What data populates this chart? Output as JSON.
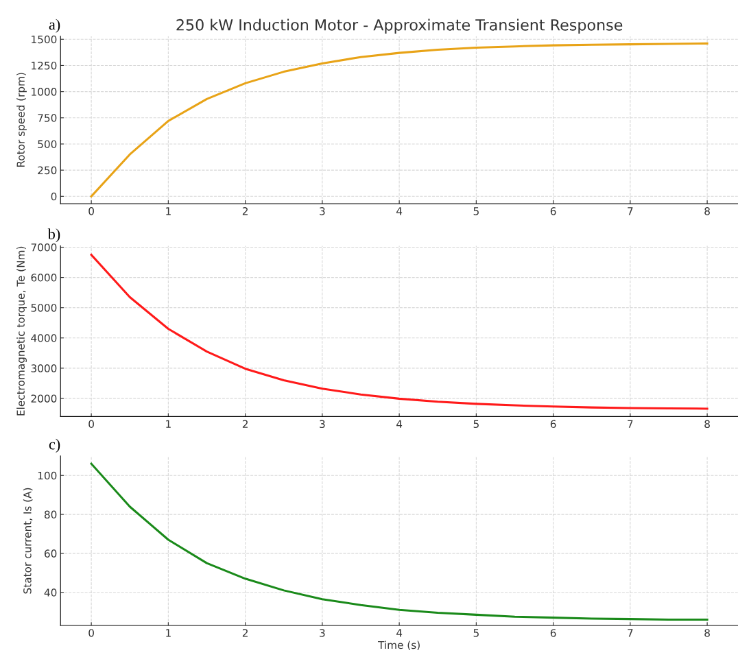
{
  "chart_data": [
    {
      "type": "line",
      "title": "250 kW Induction Motor - Approximate Transient Response",
      "ylabel": "Rotor speed (rpm)",
      "annotations": [
        "a)"
      ],
      "x": [
        0,
        0.5,
        1,
        1.5,
        2,
        2.5,
        3,
        3.5,
        4,
        4.5,
        5,
        5.5,
        6,
        6.5,
        7,
        7.5,
        8
      ],
      "series": [
        {
          "color": "#e8a317",
          "values": [
            0,
            400,
            720,
            930,
            1080,
            1190,
            1270,
            1330,
            1370,
            1400,
            1420,
            1432,
            1442,
            1448,
            1452,
            1456,
            1460
          ]
        }
      ],
      "xlim": [
        -0.4,
        8.4
      ],
      "xticks": [
        0,
        1,
        2,
        3,
        4,
        5,
        6,
        7,
        8
      ],
      "ylim": [
        -70,
        1530
      ],
      "yticks": [
        0,
        250,
        500,
        750,
        1000,
        1250,
        1500
      ],
      "grid": true
    },
    {
      "type": "line",
      "ylabel": "Electromagnetic torque, Te (Nm)",
      "annotations": [
        "b)"
      ],
      "x": [
        0,
        0.5,
        1,
        1.5,
        2,
        2.5,
        3,
        3.5,
        4,
        4.5,
        5,
        5.5,
        6,
        6.5,
        7,
        7.5,
        8
      ],
      "series": [
        {
          "color": "#ff1a1a",
          "values": [
            6750,
            5350,
            4300,
            3550,
            2980,
            2600,
            2320,
            2130,
            1990,
            1890,
            1820,
            1770,
            1730,
            1700,
            1680,
            1670,
            1660
          ]
        }
      ],
      "xlim": [
        -0.4,
        8.4
      ],
      "xticks": [
        0,
        1,
        2,
        3,
        4,
        5,
        6,
        7,
        8
      ],
      "ylim": [
        1400,
        7050
      ],
      "yticks": [
        2000,
        3000,
        4000,
        5000,
        6000,
        7000
      ],
      "grid": true
    },
    {
      "type": "line",
      "xlabel": "Time (s)",
      "ylabel": "Stator current, Is (A)",
      "annotations": [
        "c)"
      ],
      "x": [
        0,
        0.5,
        1,
        1.5,
        2,
        2.5,
        3,
        3.5,
        4,
        4.5,
        5,
        5.5,
        6,
        6.5,
        7,
        7.5,
        8
      ],
      "series": [
        {
          "color": "#1a8a1a",
          "values": [
            106,
            84,
            67,
            55,
            47,
            41,
            36.5,
            33.5,
            31,
            29.5,
            28.5,
            27.5,
            27,
            26.5,
            26.3,
            26,
            26
          ]
        }
      ],
      "xlim": [
        -0.4,
        8.4
      ],
      "xticks": [
        0,
        1,
        2,
        3,
        4,
        5,
        6,
        7,
        8
      ],
      "ylim": [
        23,
        110
      ],
      "yticks": [
        40,
        60,
        80,
        100
      ],
      "grid": true
    }
  ]
}
